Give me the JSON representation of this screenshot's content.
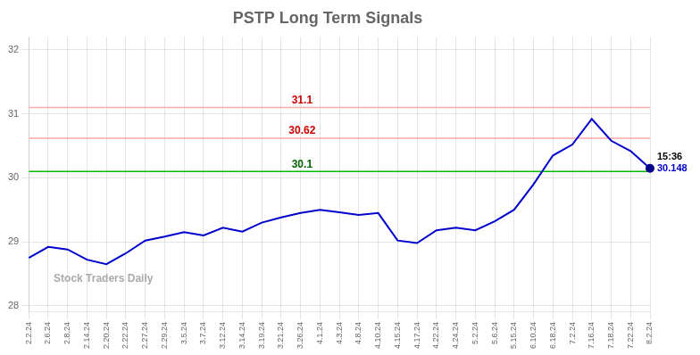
{
  "chart_data": {
    "type": "line",
    "title": "PSTP Long Term Signals",
    "categories": [
      "2.2.24",
      "2.6.24",
      "2.8.24",
      "2.14.24",
      "2.20.24",
      "2.22.24",
      "2.27.24",
      "2.29.24",
      "3.5.24",
      "3.7.24",
      "3.12.24",
      "3.14.24",
      "3.19.24",
      "3.21.24",
      "3.26.24",
      "4.1.24",
      "4.3.24",
      "4.8.24",
      "4.10.24",
      "4.15.24",
      "4.17.24",
      "4.22.24",
      "4.24.24",
      "5.2.24",
      "5.6.24",
      "5.15.24",
      "6.10.24",
      "6.18.24",
      "7.2.24",
      "7.16.24",
      "7.18.24",
      "7.22.24",
      "8.2.24"
    ],
    "values": [
      28.75,
      28.92,
      28.88,
      28.72,
      28.65,
      28.82,
      29.02,
      29.08,
      29.15,
      29.1,
      29.22,
      29.16,
      29.3,
      29.38,
      29.45,
      29.5,
      29.46,
      29.42,
      29.45,
      29.02,
      28.98,
      29.18,
      29.22,
      29.18,
      29.32,
      29.5,
      29.9,
      30.35,
      30.52,
      30.92,
      30.58,
      30.42,
      30.148
    ],
    "color": "#0000CC",
    "end_dot_color": "#00008B",
    "ylim": [
      27.9,
      32.2
    ],
    "yticks": [
      28,
      29,
      30,
      31,
      32
    ],
    "grid": true,
    "hlines": [
      {
        "value": 31.1,
        "label": "31.1",
        "color": "#ffaaaa",
        "label_color": "#cc0000"
      },
      {
        "value": 30.62,
        "label": "30.62",
        "color": "#ffaaaa",
        "label_color": "#cc0000"
      },
      {
        "value": 30.1,
        "label": "30.1",
        "color": "#00bb00",
        "label_color": "#006600"
      }
    ],
    "annotations": [
      {
        "text": "15:36",
        "color": "#000000"
      },
      {
        "text": "30.148",
        "color": "#0000CC"
      }
    ],
    "watermark": "Stock Traders Daily"
  }
}
